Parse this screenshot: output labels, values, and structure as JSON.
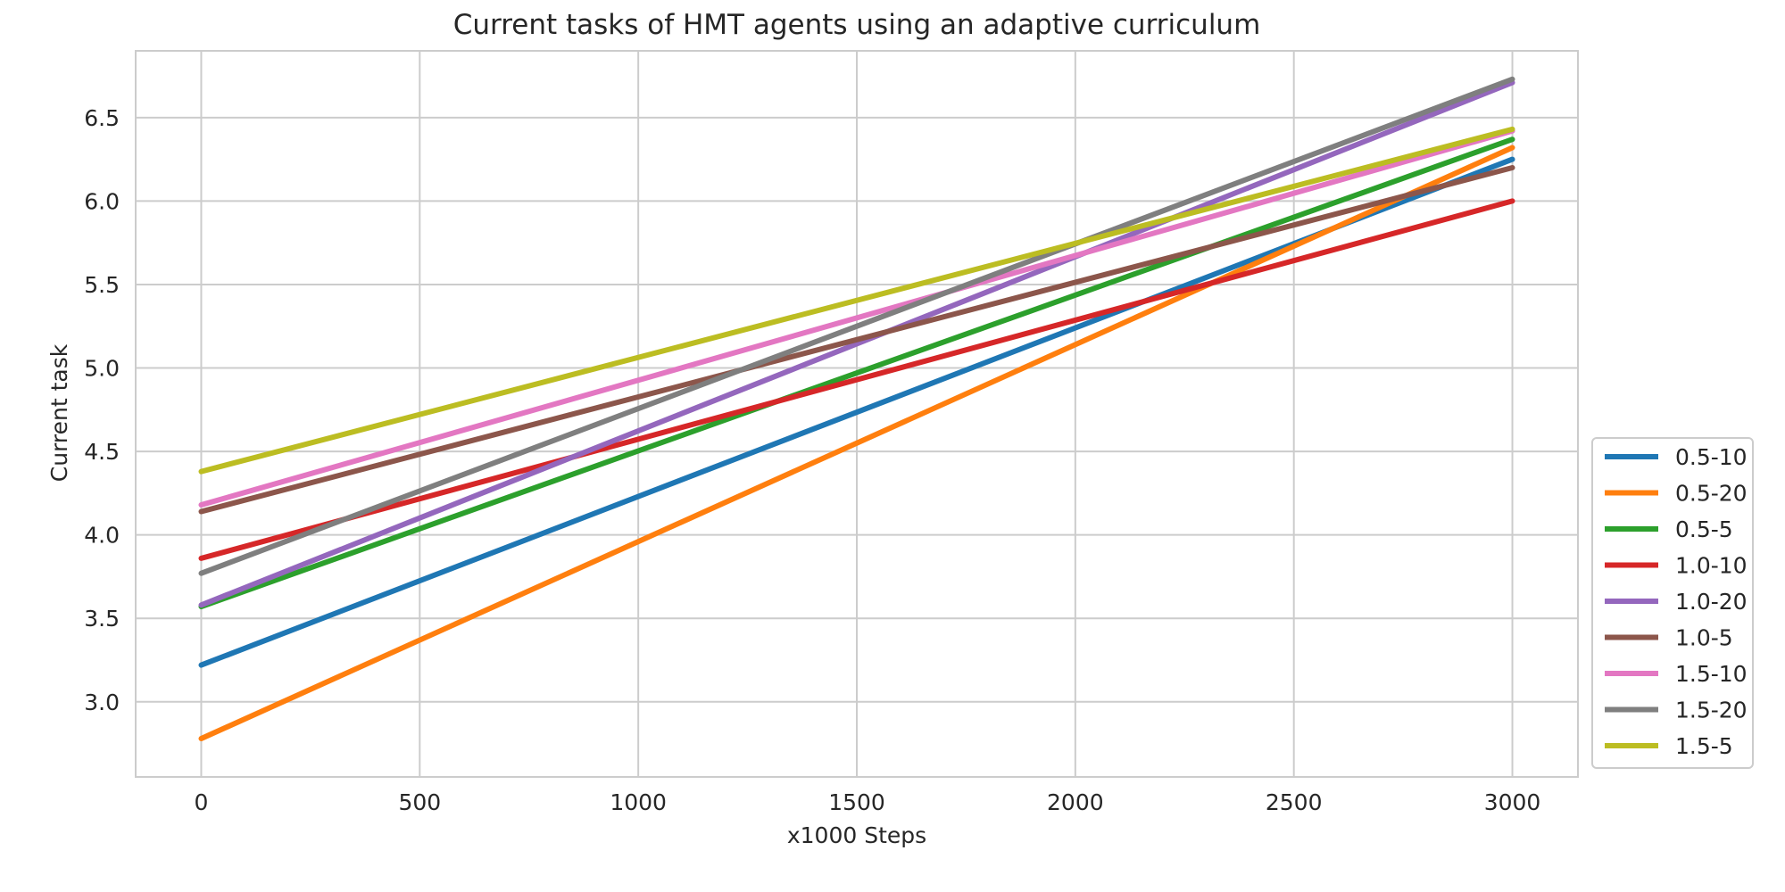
{
  "chart_data": {
    "type": "line",
    "title": "Current tasks of HMT agents using an adaptive curriculum",
    "xlabel": "x1000 Steps",
    "ylabel": "Current task",
    "xlim": [
      -150,
      3150
    ],
    "ylim": [
      2.55,
      6.9
    ],
    "x_ticks": [
      0,
      500,
      1000,
      1500,
      2000,
      2500,
      3000
    ],
    "y_ticks": [
      3.0,
      3.5,
      4.0,
      4.5,
      5.0,
      5.5,
      6.0,
      6.5
    ],
    "x_tick_labels": [
      "0",
      "500",
      "1000",
      "1500",
      "2000",
      "2500",
      "3000"
    ],
    "y_tick_labels": [
      "3.0",
      "3.5",
      "4.0",
      "4.5",
      "5.0",
      "5.5",
      "6.0",
      "6.5"
    ],
    "grid": true,
    "legend_position": "lower-right-outside",
    "x": [
      0,
      3000
    ],
    "series": [
      {
        "name": "0.5-10",
        "color": "#1f77b4",
        "values": [
          3.22,
          6.25
        ]
      },
      {
        "name": "0.5-20",
        "color": "#ff7f0e",
        "values": [
          2.78,
          6.32
        ]
      },
      {
        "name": "0.5-5",
        "color": "#2ca02c",
        "values": [
          3.57,
          6.37
        ]
      },
      {
        "name": "1.0-10",
        "color": "#d62728",
        "values": [
          3.86,
          6.0
        ]
      },
      {
        "name": "1.0-20",
        "color": "#9467bd",
        "values": [
          3.58,
          6.71
        ]
      },
      {
        "name": "1.0-5",
        "color": "#8c564b",
        "values": [
          4.14,
          6.2
        ]
      },
      {
        "name": "1.5-10",
        "color": "#e377c2",
        "values": [
          4.18,
          6.42
        ]
      },
      {
        "name": "1.5-20",
        "color": "#7f7f7f",
        "values": [
          3.77,
          6.73
        ]
      },
      {
        "name": "1.5-5",
        "color": "#bcbd22",
        "values": [
          4.38,
          6.43
        ]
      }
    ]
  }
}
